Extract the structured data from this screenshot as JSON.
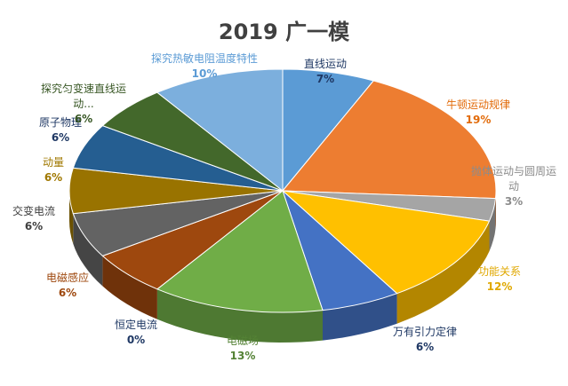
{
  "chart_data": {
    "type": "pie",
    "title": "2019 广一模",
    "slices": [
      {
        "label": "直线运动",
        "percent_label": "7%",
        "value": 7,
        "color": "#5B9BD5"
      },
      {
        "label": "牛顿运动规律",
        "percent_label": "19%",
        "value": 19,
        "color": "#ED7D31"
      },
      {
        "label": "抛体运动与圆周运动",
        "label_display": [
          "抛体运动与圆周运",
          "动"
        ],
        "percent_label": "3%",
        "value": 3,
        "color": "#A5A5A5"
      },
      {
        "label": "功能关系",
        "percent_label": "12%",
        "value": 12,
        "color": "#FFC000"
      },
      {
        "label": "万有引力定律",
        "percent_label": "6%",
        "value": 6,
        "color": "#4472C4"
      },
      {
        "label": "电磁场",
        "percent_label": "13%",
        "value": 13,
        "color": "#70AD47"
      },
      {
        "label": "恒定电流",
        "percent_label": "0%",
        "value": 0,
        "color": "#264478"
      },
      {
        "label": "电磁感应",
        "percent_label": "6%",
        "value": 6,
        "color": "#9E480E"
      },
      {
        "label": "交变电流",
        "percent_label": "6%",
        "value": 6,
        "color": "#636363"
      },
      {
        "label": "动量",
        "percent_label": "6%",
        "value": 6,
        "color": "#997300"
      },
      {
        "label": "原子物理",
        "percent_label": "6%",
        "value": 6,
        "color": "#255E91"
      },
      {
        "label": "探究匀变速直线运动",
        "label_display": [
          "探究匀变速直线运",
          "动..."
        ],
        "percent_label": "6%",
        "value": 6,
        "color": "#43682B"
      },
      {
        "label": "探究热敏电阻温度特性",
        "percent_label": "10%",
        "value": 10,
        "color": "#7CAFDD"
      }
    ]
  }
}
